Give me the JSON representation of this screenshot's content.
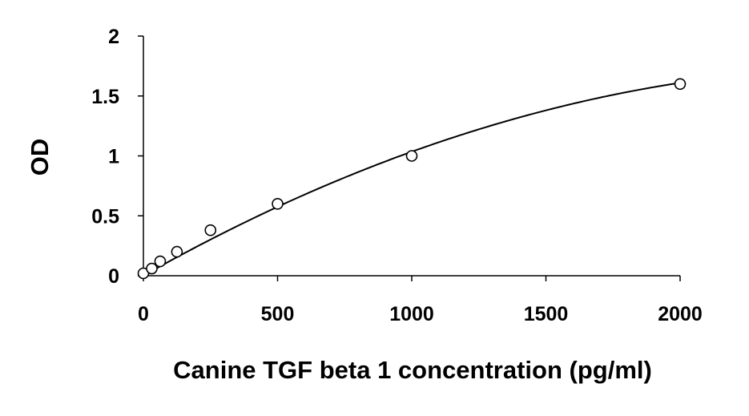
{
  "chart_data": {
    "type": "scatter",
    "title": "",
    "xlabel": "Canine TGF beta 1 concentration (pg/ml)",
    "ylabel": "OD",
    "xlim": [
      0,
      2000
    ],
    "ylim": [
      0,
      2
    ],
    "x_ticks": [
      0,
      500,
      1000,
      1500,
      2000
    ],
    "x_tick_labels": [
      "0",
      "500",
      "1000",
      "1500",
      "2000"
    ],
    "y_ticks": [
      0,
      0.5,
      1,
      1.5,
      2
    ],
    "y_tick_labels": [
      "0",
      "0.5",
      "1",
      "1.5",
      "2"
    ],
    "grid": false,
    "legend": "none",
    "series": [
      {
        "marker": "open-circle",
        "x": [
          0,
          31.25,
          62.5,
          125,
          250,
          500,
          1000,
          2000
        ],
        "y": [
          0.02,
          0.06,
          0.12,
          0.2,
          0.38,
          0.6,
          1.0,
          1.6
        ]
      }
    ],
    "fit_curve": {
      "type": "polynomial-trendline",
      "x_range": [
        0,
        2000
      ],
      "coefficients": [
        0.0,
        0.001265,
        -2.3e-07
      ]
    }
  },
  "colors": {
    "axis": "#000000",
    "marker": "#000000",
    "curve": "#000000",
    "background": "#ffffff"
  }
}
